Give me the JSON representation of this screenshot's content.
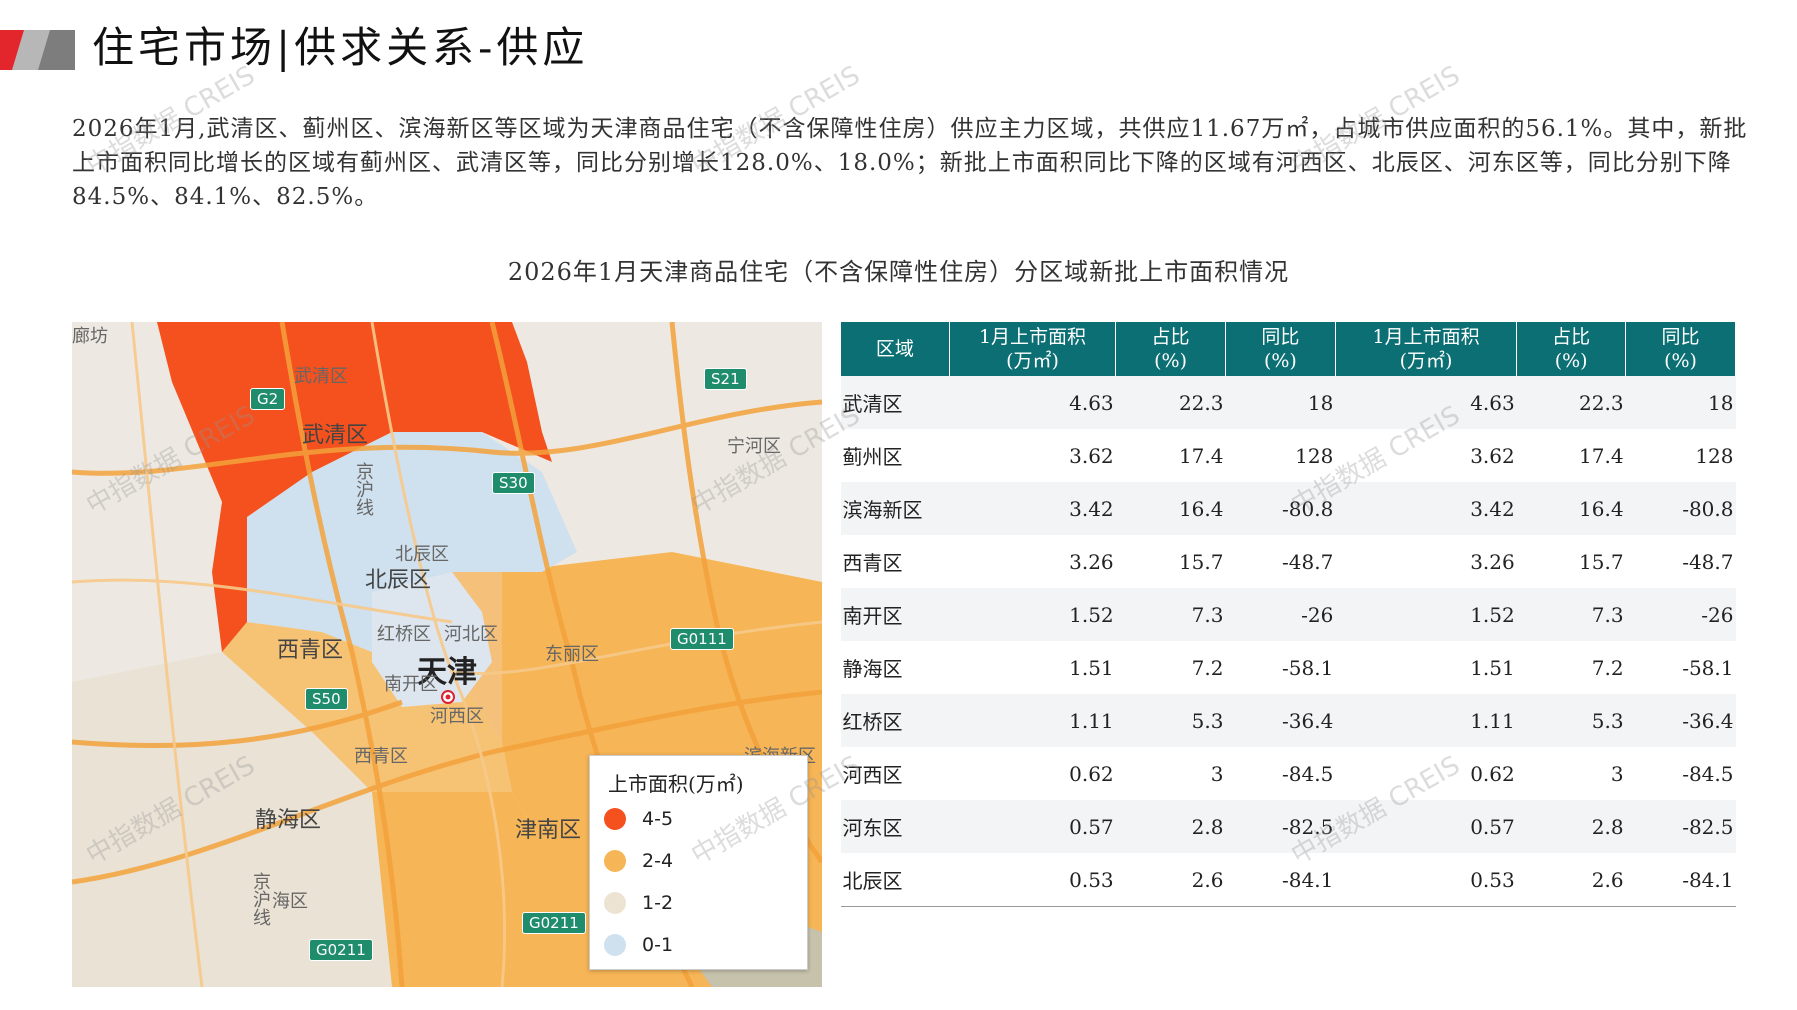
{
  "page_title": "住宅市场|供求关系-供应",
  "summary_text": "2026年1月,武清区、蓟州区、滨海新区等区域为天津商品住宅（不含保障性住房）供应主力区域，共供应11.67万㎡，占城市供应面积的56.1%。其中，新批上市面积同比增长的区域有蓟州区、武清区等，同比分别增长128.0%、18.0%；新批上市面积同比下降的区域有河西区、北辰区、河东区等，同比分别下降84.5%、84.1%、82.5%。",
  "section_title": "2026年1月天津商品住宅（不含保障性住房）分区域新批上市面积情况",
  "map": {
    "labels": {
      "langfang": "廊坊",
      "wuqing_small": "武清区",
      "wuqing": "武清区",
      "beichen_small": "北辰区",
      "beichen": "北辰区",
      "hongqiao": "红桥区",
      "hebei": "河北区",
      "xiqing": "西青区",
      "tianjin": "天津",
      "nankai": "南开区",
      "hexi": "河西区",
      "dongli": "东丽区",
      "ninghe": "宁河区",
      "xiqing_small": "西青区",
      "jinghai": "静海区",
      "jinnan": "津南区",
      "binhai": "滨海新区",
      "beijing_hu": "京沪线",
      "jinghu": "京沪线",
      "jinghai_small": "海区"
    },
    "roads": [
      "G2",
      "S21",
      "S30",
      "G0111",
      "S50",
      "G0211",
      "G0211"
    ],
    "legend": {
      "title": "上市面积(万㎡)",
      "items": [
        {
          "label": "4-5",
          "color": "#f4511e"
        },
        {
          "label": "2-4",
          "color": "#f6b556"
        },
        {
          "label": "1-2",
          "color": "#ece3d2"
        },
        {
          "label": "0-1",
          "color": "#cfe0ee"
        }
      ]
    }
  },
  "table": {
    "headers": [
      "区域",
      "1月上市面积\n(万㎡)",
      "占比\n(%)",
      "同比\n(%)",
      "1月上市面积\n(万㎡)",
      "占比\n(%)",
      "同比\n(%)"
    ],
    "rows": [
      [
        "武清区",
        "4.63",
        "22.3",
        "18",
        "4.63",
        "22.3",
        "18"
      ],
      [
        "蓟州区",
        "3.62",
        "17.4",
        "128",
        "3.62",
        "17.4",
        "128"
      ],
      [
        "滨海新区",
        "3.42",
        "16.4",
        "-80.8",
        "3.42",
        "16.4",
        "-80.8"
      ],
      [
        "西青区",
        "3.26",
        "15.7",
        "-48.7",
        "3.26",
        "15.7",
        "-48.7"
      ],
      [
        "南开区",
        "1.52",
        "7.3",
        "-26",
        "1.52",
        "7.3",
        "-26"
      ],
      [
        "静海区",
        "1.51",
        "7.2",
        "-58.1",
        "1.51",
        "7.2",
        "-58.1"
      ],
      [
        "红桥区",
        "1.11",
        "5.3",
        "-36.4",
        "1.11",
        "5.3",
        "-36.4"
      ],
      [
        "河西区",
        "0.62",
        "3",
        "-84.5",
        "0.62",
        "3",
        "-84.5"
      ],
      [
        "河东区",
        "0.57",
        "2.8",
        "-82.5",
        "0.57",
        "2.8",
        "-82.5"
      ],
      [
        "北辰区",
        "0.53",
        "2.6",
        "-84.1",
        "0.53",
        "2.6",
        "-84.1"
      ]
    ]
  },
  "watermark": "中指数据 CREIS",
  "colors": {
    "header": "#0c6f73",
    "accent_red": "#e3262c"
  }
}
